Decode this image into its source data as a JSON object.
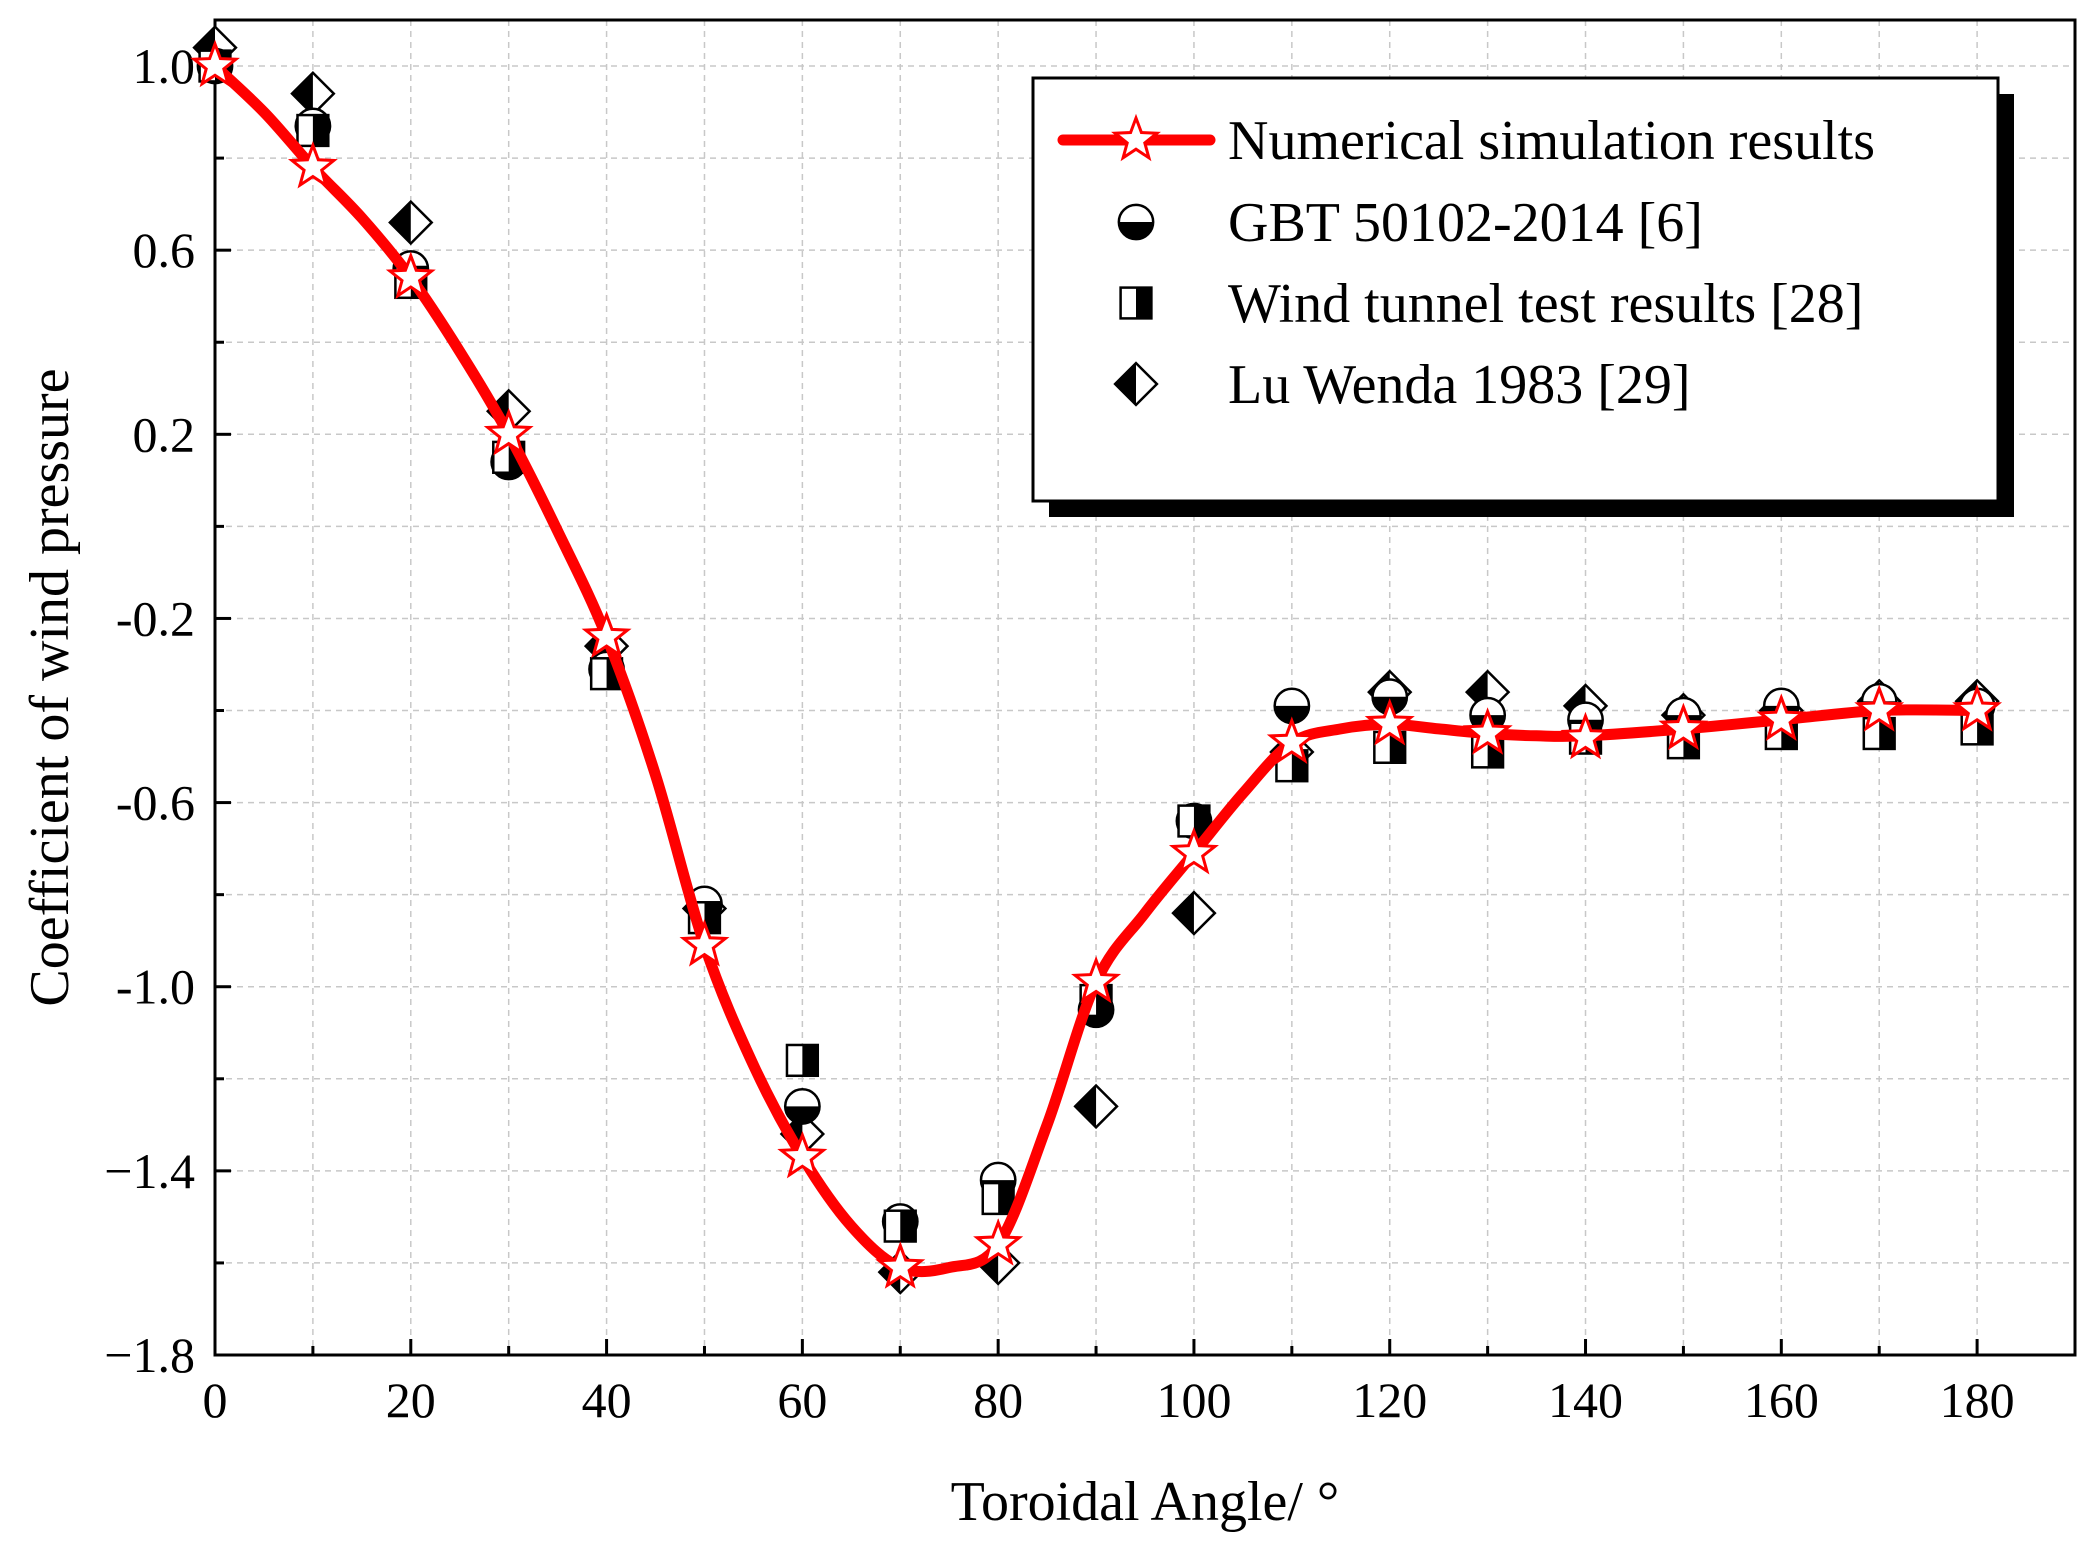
{
  "chart_data": {
    "type": "line",
    "title": "",
    "xlabel": "Toroidal Angle/ °",
    "ylabel": "Coefficient of wind pressure",
    "xlim": [
      0,
      190
    ],
    "ylim": [
      -1.8,
      1.1
    ],
    "xticks": [
      0,
      20,
      40,
      60,
      80,
      100,
      120,
      140,
      160,
      180
    ],
    "xtick_labels": [
      "0",
      "20",
      "40",
      "60",
      "80",
      "100",
      "120",
      "140",
      "160",
      "180"
    ],
    "yticks": [
      1.0,
      0.6,
      0.2,
      -0.2,
      -0.6,
      -1.0,
      -1.4,
      -1.8
    ],
    "ytick_labels": [
      "1.0",
      "0.6",
      "0.2",
      "-0.2",
      "-0.6",
      "-1.0",
      "−1.4",
      "−1.8"
    ],
    "grid": true,
    "legend_position": "top-right",
    "series": [
      {
        "name": "Numerical simulation results",
        "marker": "star",
        "color": "#ff0000",
        "x": [
          0,
          10,
          20,
          30,
          40,
          50,
          60,
          70,
          80,
          90,
          100,
          110,
          120,
          130,
          140,
          150,
          160,
          170,
          180
        ],
        "y": [
          1.0,
          0.78,
          0.54,
          0.2,
          -0.24,
          -0.91,
          -1.37,
          -1.61,
          -1.56,
          -0.99,
          -0.71,
          -0.47,
          -0.43,
          -0.45,
          -0.46,
          -0.44,
          -0.42,
          -0.4,
          -0.4
        ]
      },
      {
        "name": "GBT 50102-2014 [6]",
        "marker": "half-circle",
        "color": "#000000",
        "x": [
          0,
          10,
          20,
          30,
          40,
          50,
          60,
          70,
          80,
          90,
          100,
          110,
          120,
          130,
          140,
          150,
          160,
          170,
          180
        ],
        "y": [
          1.0,
          0.87,
          0.56,
          0.14,
          -0.31,
          -0.82,
          -1.26,
          -1.51,
          -1.42,
          -1.05,
          -0.64,
          -0.39,
          -0.37,
          -0.41,
          -0.42,
          -0.41,
          -0.39,
          -0.38,
          -0.39
        ]
      },
      {
        "name": "Wind tunnel test results [28]",
        "marker": "half-square",
        "color": "#000000",
        "x": [
          0,
          10,
          20,
          30,
          40,
          50,
          60,
          70,
          80,
          90,
          100,
          110,
          120,
          130,
          140,
          150,
          160,
          170,
          180
        ],
        "y": [
          1.0,
          0.86,
          0.53,
          0.15,
          -0.32,
          -0.85,
          -1.16,
          -1.52,
          -1.46,
          -1.03,
          -0.64,
          -0.52,
          -0.48,
          -0.49,
          -0.46,
          -0.47,
          -0.45,
          -0.45,
          -0.44
        ]
      },
      {
        "name": "Lu Wenda 1983 [29]",
        "marker": "half-diamond",
        "color": "#000000",
        "x": [
          0,
          10,
          20,
          30,
          40,
          50,
          60,
          70,
          80,
          90,
          100,
          110,
          120,
          130,
          140,
          150,
          160,
          170,
          180
        ],
        "y": [
          1.04,
          0.94,
          0.66,
          0.25,
          -0.26,
          -0.83,
          -1.32,
          -1.62,
          -1.6,
          -1.26,
          -0.84,
          -0.49,
          -0.36,
          -0.36,
          -0.39,
          -0.41,
          -0.4,
          -0.38,
          -0.38
        ]
      }
    ],
    "curve": {
      "x": [
        0,
        5,
        10,
        15,
        20,
        25,
        30,
        35,
        40,
        45,
        50,
        55,
        60,
        65,
        70,
        75,
        80,
        85,
        90,
        95,
        100,
        105,
        110,
        115,
        120,
        125,
        130,
        135,
        140,
        150,
        160,
        170,
        180
      ],
      "y": [
        1.0,
        0.9,
        0.78,
        0.67,
        0.54,
        0.38,
        0.2,
        -0.01,
        -0.24,
        -0.54,
        -0.91,
        -1.17,
        -1.37,
        -1.52,
        -1.61,
        -1.61,
        -1.56,
        -1.3,
        -0.99,
        -0.84,
        -0.71,
        -0.58,
        -0.47,
        -0.44,
        -0.43,
        -0.44,
        -0.45,
        -0.455,
        -0.455,
        -0.44,
        -0.42,
        -0.4,
        -0.4
      ]
    }
  }
}
